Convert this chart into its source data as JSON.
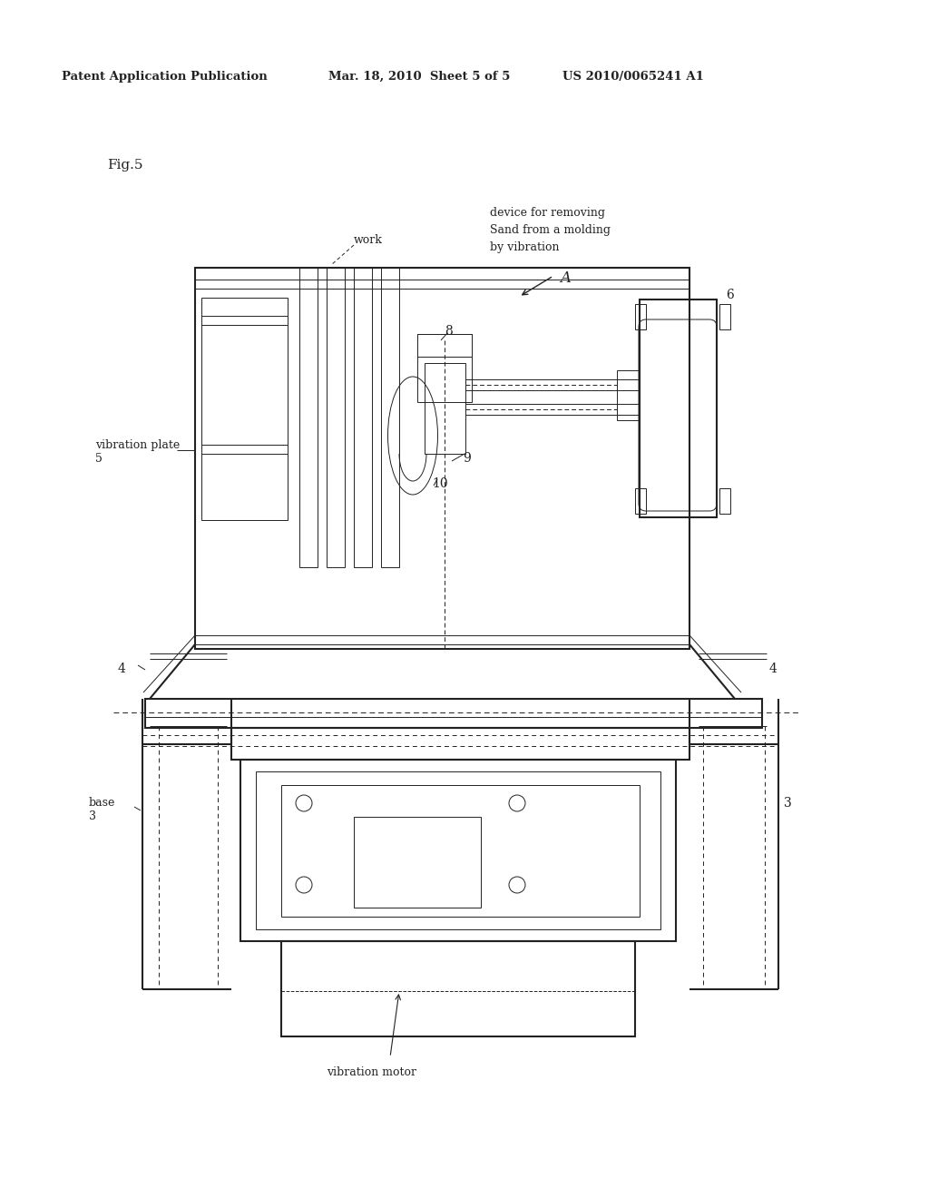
{
  "bg_color": "#ffffff",
  "header_left": "Patent Application Publication",
  "header_mid": "Mar. 18, 2010  Sheet 5 of 5",
  "header_right": "US 2010/0065241 A1",
  "fig_label": "Fig.5",
  "label_work": "work",
  "label_A": "A",
  "label_device": "device for removing\nSand from a molding\nby vibration",
  "label_vibration_plate": "vibration plate\n5",
  "label_base": "base\n3",
  "label_3r": "3",
  "label_4l": "4",
  "label_4r": "4",
  "label_6": "6",
  "label_7": "vibration motor",
  "label_8": "8",
  "label_9": "9",
  "label_10": "10"
}
